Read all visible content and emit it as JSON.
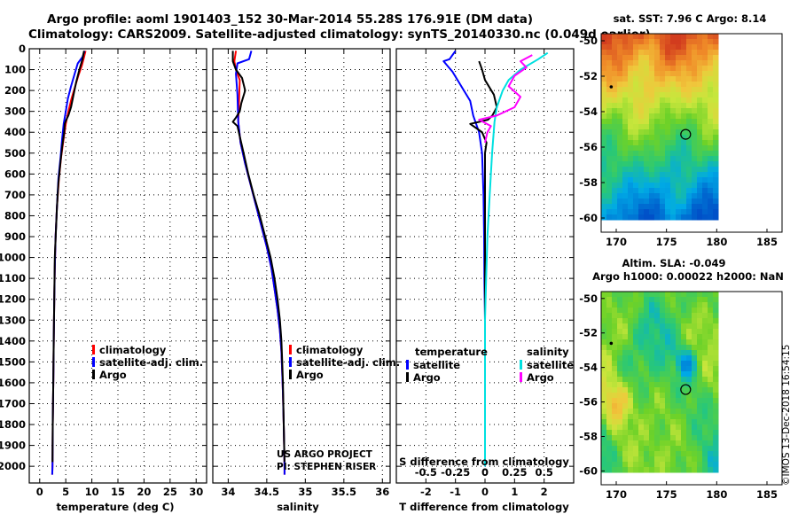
{
  "figure": {
    "title_line1": "Argo profile: aoml 1901403_152 30-Mar-2014 55.28S 176.91E (DM data)",
    "title_line2": "Climatology: CARS2009. Satellite-adjusted climatology: synTS_20140330.nc (0.049d earlier)",
    "credit": "US ARGO PROJECT",
    "pi": "PI: STEPHEN RISER",
    "stamp": "©IMOS 13-Dec-2018 16:54:15"
  },
  "chart_data": [
    {
      "id": "temperature",
      "type": "line",
      "xlabel": "temperature (deg C)",
      "xlim": [
        -2,
        32
      ],
      "ylim": [
        2080,
        0
      ],
      "xticks": [
        0,
        5,
        10,
        15,
        20,
        25,
        30
      ],
      "yticks": [
        0,
        100,
        200,
        300,
        400,
        500,
        600,
        700,
        800,
        900,
        1000,
        1100,
        1200,
        1300,
        1400,
        1500,
        1600,
        1700,
        1800,
        1900,
        2000
      ],
      "legend": [
        {
          "label": "climatology",
          "color": "#ff0000"
        },
        {
          "label": "satellite-adj. clim.",
          "color": "#0000ff"
        },
        {
          "label": "Argo",
          "color": "#000000"
        }
      ],
      "series": [
        {
          "name": "climatology",
          "color": "#ff0000",
          "points": [
            [
              8.8,
              10
            ],
            [
              8.5,
              40
            ],
            [
              8.1,
              80
            ],
            [
              7.4,
              130
            ],
            [
              6.8,
              180
            ],
            [
              6.1,
              240
            ],
            [
              5.5,
              300
            ],
            [
              5.0,
              360
            ],
            [
              4.6,
              430
            ],
            [
              4.1,
              520
            ],
            [
              3.7,
              620
            ],
            [
              3.3,
              760
            ],
            [
              3.05,
              900
            ],
            [
              2.9,
              1050
            ],
            [
              2.8,
              1200
            ],
            [
              2.7,
              1400
            ],
            [
              2.6,
              1600
            ],
            [
              2.5,
              1800
            ],
            [
              2.45,
              2000
            ],
            [
              2.4,
              2040
            ]
          ]
        },
        {
          "name": "satellite-adj. clim.",
          "color": "#0000ff",
          "points": [
            [
              8.6,
              10
            ],
            [
              8.2,
              40
            ],
            [
              7.3,
              70
            ],
            [
              6.7,
              120
            ],
            [
              6.0,
              180
            ],
            [
              5.4,
              240
            ],
            [
              5.0,
              300
            ],
            [
              4.6,
              360
            ],
            [
              4.3,
              430
            ],
            [
              4.0,
              520
            ],
            [
              3.6,
              620
            ],
            [
              3.3,
              760
            ],
            [
              3.05,
              900
            ],
            [
              2.9,
              1050
            ],
            [
              2.8,
              1200
            ],
            [
              2.7,
              1400
            ],
            [
              2.6,
              1600
            ],
            [
              2.5,
              1800
            ],
            [
              2.45,
              2000
            ],
            [
              2.4,
              2040
            ]
          ]
        },
        {
          "name": "Argo",
          "color": "#000000",
          "points": [
            [
              8.5,
              10
            ],
            [
              8.2,
              50
            ],
            [
              7.6,
              100
            ],
            [
              7.0,
              160
            ],
            [
              6.5,
              220
            ],
            [
              6.0,
              280
            ],
            [
              5.5,
              320
            ],
            [
              5.1,
              340
            ],
            [
              4.8,
              360
            ],
            [
              4.7,
              400
            ],
            [
              4.3,
              470
            ],
            [
              4.0,
              540
            ],
            [
              3.6,
              640
            ],
            [
              3.3,
              760
            ],
            [
              3.1,
              880
            ],
            [
              2.9,
              1000
            ],
            [
              2.8,
              1200
            ],
            [
              2.7,
              1400
            ],
            [
              2.6,
              1600
            ],
            [
              2.5,
              1800
            ],
            [
              2.45,
              1980
            ]
          ]
        }
      ]
    },
    {
      "id": "salinity",
      "type": "line",
      "xlabel": "salinity",
      "xlim": [
        33.8,
        36.1
      ],
      "ylim": [
        2080,
        0
      ],
      "xticks": [
        34,
        34.5,
        35,
        35.5,
        36
      ],
      "legend": [
        {
          "label": "climatology",
          "color": "#ff0000"
        },
        {
          "label": "satellite-adj. clim.",
          "color": "#0000ff"
        },
        {
          "label": "Argo",
          "color": "#000000"
        }
      ],
      "series": [
        {
          "name": "climatology",
          "color": "#ff0000",
          "points": [
            [
              34.1,
              10
            ],
            [
              34.08,
              60
            ],
            [
              34.1,
              100
            ],
            [
              34.15,
              150
            ],
            [
              34.14,
              250
            ],
            [
              34.13,
              350
            ],
            [
              34.16,
              450
            ],
            [
              34.22,
              550
            ],
            [
              34.29,
              650
            ],
            [
              34.36,
              750
            ],
            [
              34.43,
              850
            ],
            [
              34.5,
              950
            ],
            [
              34.56,
              1050
            ],
            [
              34.6,
              1150
            ],
            [
              34.64,
              1250
            ],
            [
              34.67,
              1350
            ],
            [
              34.69,
              1450
            ],
            [
              34.7,
              1550
            ],
            [
              34.71,
              1650
            ],
            [
              34.72,
              1800
            ],
            [
              34.73,
              2000
            ],
            [
              34.73,
              2040
            ]
          ]
        },
        {
          "name": "satellite-adj. clim.",
          "color": "#0000ff",
          "points": [
            [
              34.3,
              10
            ],
            [
              34.27,
              50
            ],
            [
              34.12,
              70
            ],
            [
              34.1,
              120
            ],
            [
              34.12,
              220
            ],
            [
              34.13,
              350
            ],
            [
              34.16,
              450
            ],
            [
              34.22,
              550
            ],
            [
              34.29,
              650
            ],
            [
              34.36,
              750
            ],
            [
              34.43,
              850
            ],
            [
              34.5,
              950
            ],
            [
              34.56,
              1050
            ],
            [
              34.6,
              1150
            ],
            [
              34.64,
              1250
            ],
            [
              34.67,
              1350
            ],
            [
              34.69,
              1450
            ],
            [
              34.7,
              1550
            ],
            [
              34.71,
              1650
            ],
            [
              34.72,
              1800
            ],
            [
              34.73,
              2000
            ],
            [
              34.73,
              2040
            ]
          ]
        },
        {
          "name": "Argo",
          "color": "#000000",
          "points": [
            [
              34.06,
              10
            ],
            [
              34.06,
              60
            ],
            [
              34.1,
              100
            ],
            [
              34.18,
              140
            ],
            [
              34.22,
              200
            ],
            [
              34.17,
              260
            ],
            [
              34.15,
              300
            ],
            [
              34.1,
              330
            ],
            [
              34.06,
              350
            ],
            [
              34.12,
              370
            ],
            [
              34.15,
              420
            ],
            [
              34.2,
              500
            ],
            [
              34.26,
              600
            ],
            [
              34.33,
              700
            ],
            [
              34.41,
              800
            ],
            [
              34.48,
              900
            ],
            [
              34.55,
              1000
            ],
            [
              34.6,
              1100
            ],
            [
              34.64,
              1200
            ],
            [
              34.67,
              1300
            ],
            [
              34.69,
              1400
            ],
            [
              34.7,
              1500
            ],
            [
              34.71,
              1600
            ],
            [
              34.72,
              1800
            ],
            [
              34.73,
              1980
            ]
          ]
        }
      ]
    },
    {
      "id": "differences",
      "type": "line",
      "xlabel": "T difference from climatology",
      "xlabel_top": "S difference from climatology",
      "xlim": [
        -3,
        3
      ],
      "ylim": [
        2080,
        0
      ],
      "xticks": [
        -2,
        -1,
        0,
        1,
        2
      ],
      "xticks_top": [
        {
          "value": -0.5,
          "label": "-0.5"
        },
        {
          "value": -0.25,
          "label": "-0.25"
        },
        {
          "value": 0,
          "label": "0"
        },
        {
          "value": 0.25,
          "label": "0.25"
        },
        {
          "value": 0.5,
          "label": "0.5"
        }
      ],
      "legend_left_title": "temperature",
      "legend_right_title": "salinity",
      "legend_left": [
        {
          "label": "satellite",
          "color": "#0000ff"
        },
        {
          "label": "Argo",
          "color": "#000000"
        }
      ],
      "legend_right": [
        {
          "label": "satellite",
          "color": "#00e0e0"
        },
        {
          "label": "Argo",
          "color": "#ff00ff"
        }
      ],
      "series": [
        {
          "name": "T satellite",
          "color": "#0000ff",
          "points": [
            [
              -1.0,
              10
            ],
            [
              -1.2,
              50
            ],
            [
              -1.4,
              60
            ],
            [
              -1.1,
              110
            ],
            [
              -0.8,
              180
            ],
            [
              -0.5,
              250
            ],
            [
              -0.4,
              320
            ],
            [
              -0.2,
              400
            ],
            [
              -0.1,
              500
            ],
            [
              -0.05,
              700
            ],
            [
              -0.03,
              900
            ],
            [
              -0.02,
              1100
            ],
            [
              0,
              1300
            ],
            [
              0,
              1600
            ],
            [
              0,
              2000
            ]
          ]
        },
        {
          "name": "T Argo",
          "color": "#000000",
          "points": [
            [
              -0.2,
              60
            ],
            [
              -0.1,
              100
            ],
            [
              0,
              150
            ],
            [
              0.3,
              220
            ],
            [
              0.4,
              280
            ],
            [
              0.25,
              320
            ],
            [
              0.1,
              340
            ],
            [
              -0.2,
              350
            ],
            [
              -0.5,
              360
            ],
            [
              -0.3,
              380
            ],
            [
              -0.1,
              400
            ],
            [
              0.05,
              450
            ],
            [
              0,
              500
            ],
            [
              0,
              700
            ],
            [
              0,
              1000
            ],
            [
              0,
              1300
            ],
            [
              0,
              1600
            ],
            [
              0,
              1980
            ]
          ]
        },
        {
          "name": "S satellite",
          "color": "#00e0e0",
          "points": [
            [
              0.53,
              20
            ],
            [
              0.45,
              50
            ],
            [
              0.3,
              100
            ],
            [
              0.2,
              150
            ],
            [
              0.15,
              200
            ],
            [
              0.1,
              280
            ],
            [
              0.08,
              350
            ],
            [
              0.06,
              500
            ],
            [
              0.04,
              700
            ],
            [
              0.02,
              900
            ],
            [
              0.01,
              1100
            ],
            [
              0,
              1300
            ],
            [
              0,
              1600
            ],
            [
              0,
              2000
            ]
          ]
        },
        {
          "name": "S Argo",
          "color": "#ff00ff",
          "points": [
            [
              0.4,
              30
            ],
            [
              0.3,
              60
            ],
            [
              0.35,
              90
            ],
            [
              0.25,
              130
            ],
            [
              0.2,
              180
            ],
            [
              0.3,
              230
            ],
            [
              0.25,
              280
            ],
            [
              0.1,
              320
            ],
            [
              -0.05,
              340
            ],
            [
              0.05,
              370
            ],
            [
              0.02,
              400
            ],
            [
              0,
              450
            ]
          ]
        }
      ]
    }
  ],
  "maps": [
    {
      "id": "sst-map",
      "title": "sat. SST: 7.96 C Argo: 8.14",
      "type": "heatmap",
      "xticks": [
        170,
        175,
        180,
        185
      ],
      "yticks": [
        -50,
        -52,
        -54,
        -56,
        -58,
        -60
      ],
      "xlim": [
        168.5,
        186.5
      ],
      "ylim": [
        -60.8,
        -49.6
      ],
      "data_lon": [
        168.5,
        180
      ],
      "data_lat": [
        -60,
        -49.6
      ],
      "argo_position": [
        176.91,
        -55.28
      ],
      "marker_small": [
        169.5,
        -52.6
      ]
    },
    {
      "id": "sla-map",
      "title": "Altim. SLA: -0.049",
      "subtitle": "Argo h1000: 0.00022 h2000: NaN",
      "type": "heatmap",
      "xticks": [
        170,
        175,
        180,
        185
      ],
      "yticks": [
        -50,
        -52,
        -54,
        -56,
        -58,
        -60
      ],
      "xlim": [
        168.5,
        186.5
      ],
      "ylim": [
        -60.8,
        -49.6
      ],
      "data_lon": [
        168.5,
        180
      ],
      "data_lat": [
        -60,
        -49.6
      ],
      "argo_position": [
        176.91,
        -55.28
      ],
      "marker_small": [
        169.5,
        -52.6
      ]
    }
  ]
}
